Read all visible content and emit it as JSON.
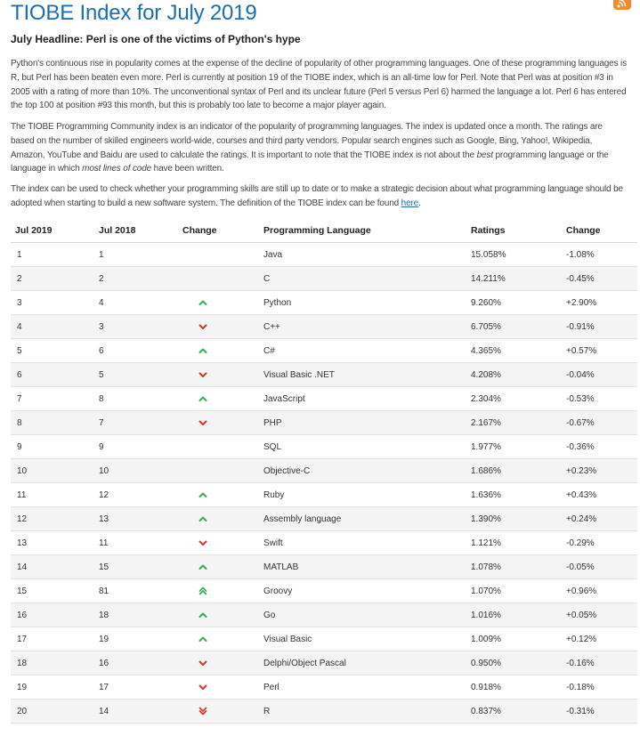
{
  "page": {
    "title": "TIOBE Index for July 2019",
    "headline": "July Headline: Perl is one of the victims of Python's hype",
    "paragraph1": "Python's continuous rise in popularity comes at the expense of the decline of popularity of other programming languages. One of these programming languages is R, but Perl has been beaten even more. Perl is currently at position 19 of the TIOBE index, which is an all-time low for Perl. Note that Perl was at position #3 in 2005 with a rating of more than 10%. The unconventional syntax of Perl and its unclear future (Perl 5 versus Perl 6) harmed the language a lot. Perl 6 has entered the top 100 at position #93 this month, but this is probably too late to become a major player again.",
    "paragraph2_part1": "The TIOBE Programming Community index is an indicator of the popularity of programming languages. The index is updated once a month. The ratings are based on the number of skilled engineers world-wide, courses and third party vendors. Popular search engines such as Google, Bing, Yahoo!, Wikipedia, Amazon, YouTube and Baidu are used to calculate the ratings. It is important to note that the TIOBE index is not about the ",
    "paragraph2_em1": "best",
    "paragraph2_part2": " programming language or the language in which ",
    "paragraph2_em2": "most lines of code",
    "paragraph2_part3": " have been written.",
    "paragraph3_text": "The index can be used to check whether your programming skills are still up to date or to make a strategic decision about what programming language should be adopted when starting to build a new software system. The definition of the TIOBE index can be found ",
    "paragraph3_link": "here",
    "paragraph3_end": "."
  },
  "rss_icon": "rss-icon",
  "colors": {
    "title": "#1a6eb5",
    "up": "#3ca95c",
    "down": "#d9352b",
    "rss": "#f08c2b"
  },
  "table": {
    "headers": [
      "Jul 2019",
      "Jul 2018",
      "Change",
      "Programming Language",
      "Ratings",
      "Change"
    ],
    "rows": [
      {
        "jul2019": "1",
        "jul2018": "1",
        "change": "",
        "language": "Java",
        "ratings": "15.058%",
        "delta": "-1.08%"
      },
      {
        "jul2019": "2",
        "jul2018": "2",
        "change": "",
        "language": "C",
        "ratings": "14.211%",
        "delta": "-0.45%"
      },
      {
        "jul2019": "3",
        "jul2018": "4",
        "change": "up",
        "language": "Python",
        "ratings": "9.260%",
        "delta": "+2.90%"
      },
      {
        "jul2019": "4",
        "jul2018": "3",
        "change": "down",
        "language": "C++",
        "ratings": "6.705%",
        "delta": "-0.91%"
      },
      {
        "jul2019": "5",
        "jul2018": "6",
        "change": "up",
        "language": "C#",
        "ratings": "4.365%",
        "delta": "+0.57%"
      },
      {
        "jul2019": "6",
        "jul2018": "5",
        "change": "down",
        "language": "Visual Basic .NET",
        "ratings": "4.208%",
        "delta": "-0.04%"
      },
      {
        "jul2019": "7",
        "jul2018": "8",
        "change": "up",
        "language": "JavaScript",
        "ratings": "2.304%",
        "delta": "-0.53%"
      },
      {
        "jul2019": "8",
        "jul2018": "7",
        "change": "down",
        "language": "PHP",
        "ratings": "2.167%",
        "delta": "-0.67%"
      },
      {
        "jul2019": "9",
        "jul2018": "9",
        "change": "",
        "language": "SQL",
        "ratings": "1.977%",
        "delta": "-0.36%"
      },
      {
        "jul2019": "10",
        "jul2018": "10",
        "change": "",
        "language": "Objective-C",
        "ratings": "1.686%",
        "delta": "+0.23%"
      },
      {
        "jul2019": "11",
        "jul2018": "12",
        "change": "up",
        "language": "Ruby",
        "ratings": "1.636%",
        "delta": "+0.43%"
      },
      {
        "jul2019": "12",
        "jul2018": "13",
        "change": "up",
        "language": "Assembly language",
        "ratings": "1.390%",
        "delta": "+0.24%"
      },
      {
        "jul2019": "13",
        "jul2018": "11",
        "change": "down",
        "language": "Swift",
        "ratings": "1.121%",
        "delta": "-0.29%"
      },
      {
        "jul2019": "14",
        "jul2018": "15",
        "change": "up",
        "language": "MATLAB",
        "ratings": "1.078%",
        "delta": "-0.05%"
      },
      {
        "jul2019": "15",
        "jul2018": "81",
        "change": "up2",
        "language": "Groovy",
        "ratings": "1.070%",
        "delta": "+0.96%"
      },
      {
        "jul2019": "16",
        "jul2018": "18",
        "change": "up",
        "language": "Go",
        "ratings": "1.016%",
        "delta": "+0.05%"
      },
      {
        "jul2019": "17",
        "jul2018": "19",
        "change": "up",
        "language": "Visual Basic",
        "ratings": "1.009%",
        "delta": "+0.12%"
      },
      {
        "jul2019": "18",
        "jul2018": "16",
        "change": "down",
        "language": "Delphi/Object Pascal",
        "ratings": "0.950%",
        "delta": "-0.16%"
      },
      {
        "jul2019": "19",
        "jul2018": "17",
        "change": "down",
        "language": "Perl",
        "ratings": "0.918%",
        "delta": "-0.18%"
      },
      {
        "jul2019": "20",
        "jul2018": "14",
        "change": "down2",
        "language": "R",
        "ratings": "0.837%",
        "delta": "-0.31%"
      }
    ]
  }
}
